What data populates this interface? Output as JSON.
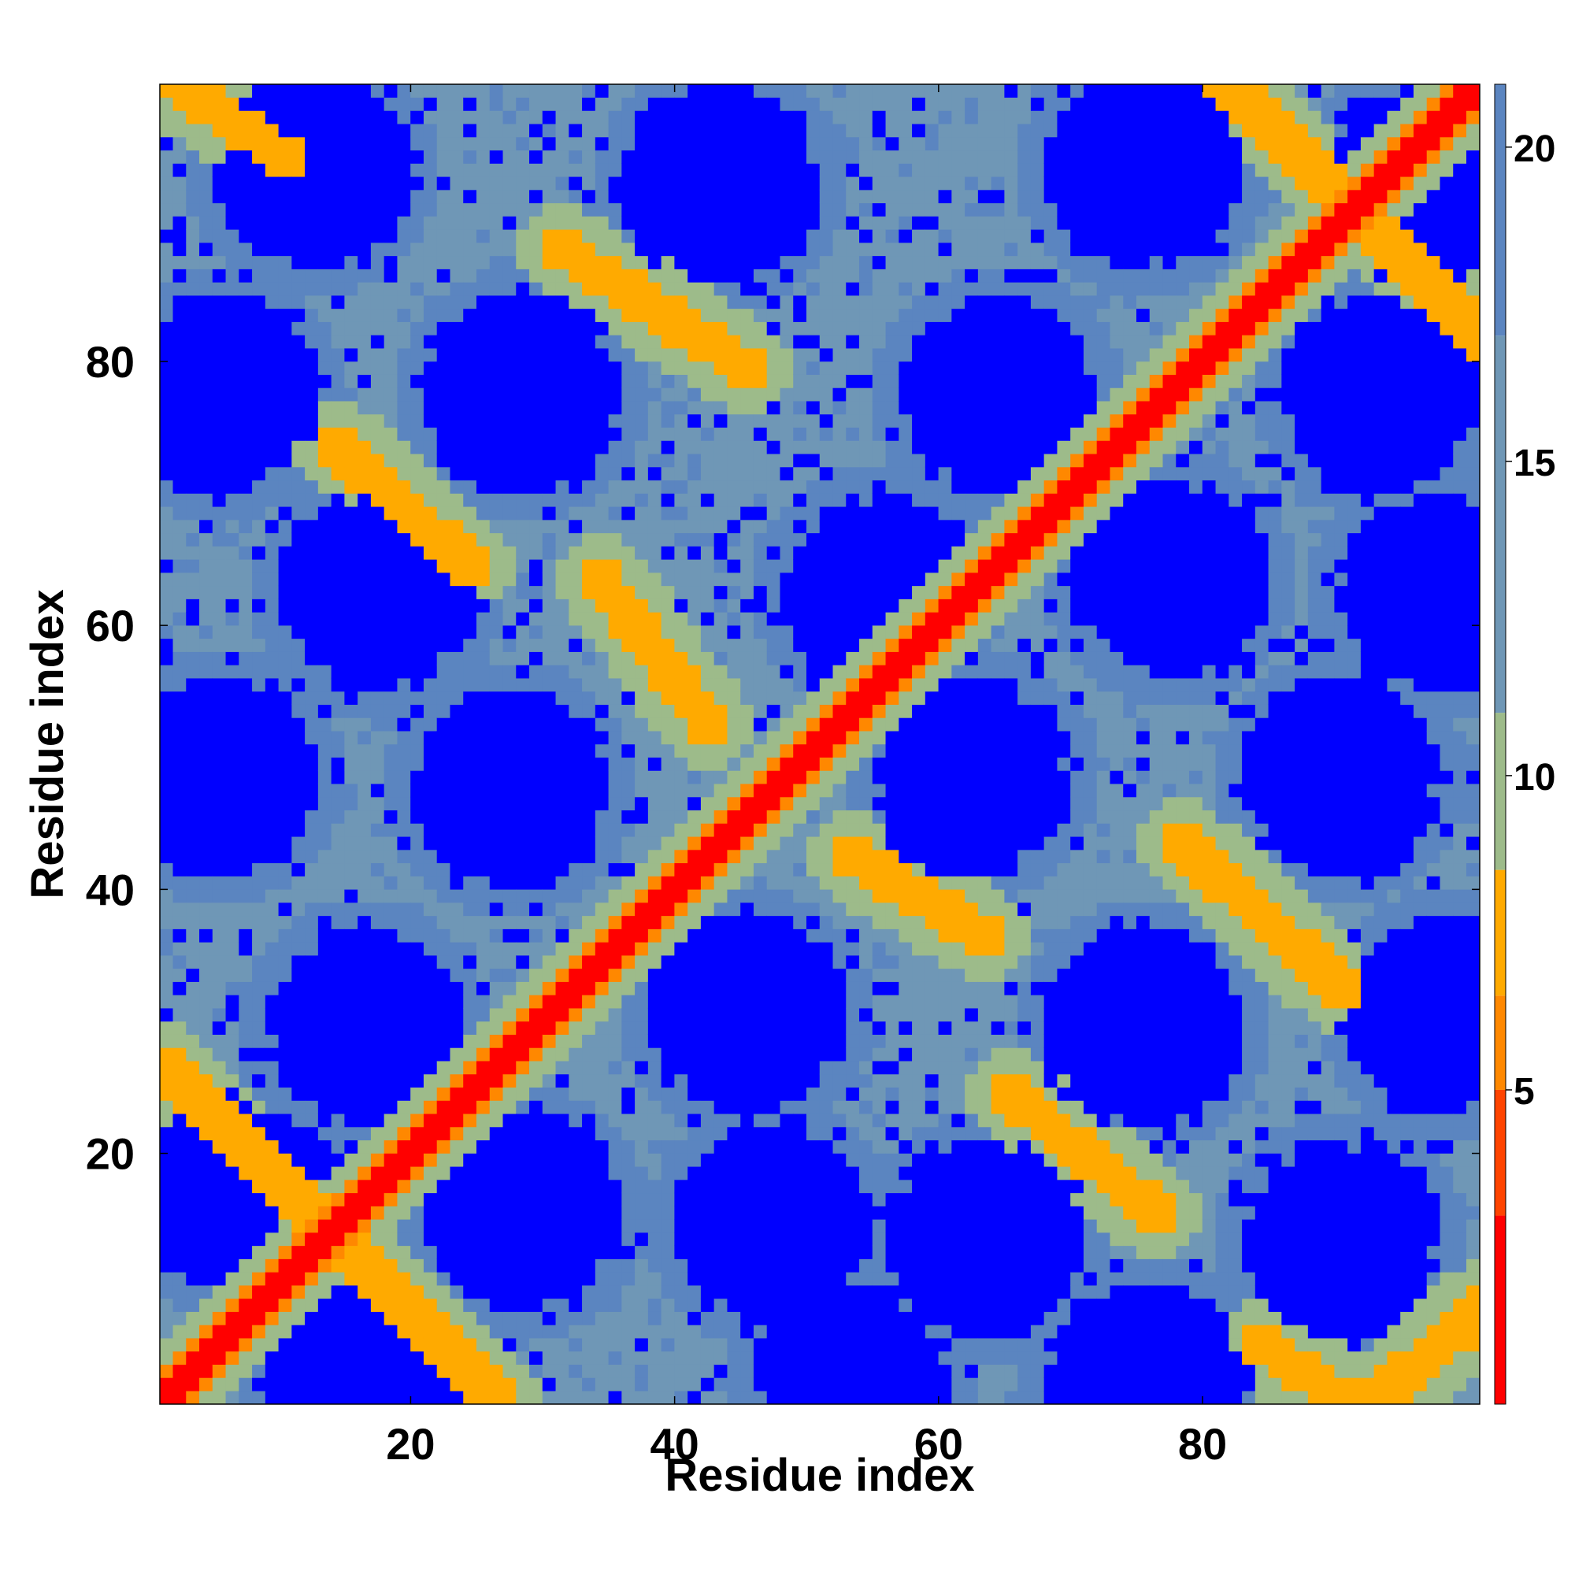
{
  "chart_data": {
    "type": "heatmap",
    "title": "",
    "xlabel": "Residue index",
    "ylabel": "Residue index",
    "x_range": [
      1,
      101
    ],
    "y_range": [
      1,
      101
    ],
    "x_ticks": [
      20,
      40,
      60,
      80
    ],
    "y_ticks": [
      20,
      40,
      60,
      80
    ],
    "colorbar": {
      "label": "",
      "range": [
        0,
        21
      ],
      "ticks": [
        5,
        10,
        15,
        20
      ],
      "colors": [
        "#ff0000",
        "#ff4400",
        "#ff8800",
        "#ffaa00",
        "#9dbb8a",
        "#6f97b6",
        "#5b85c0",
        "#0000ff"
      ],
      "boundaries": [
        0,
        3,
        5,
        6.5,
        8.5,
        11,
        17,
        21,
        21
      ]
    },
    "matrix_model": {
      "description_source": "distance-map read from image",
      "diagonal_value": 1.5,
      "secondary_contact_value": 6.5,
      "blue_blob_value": 21,
      "background_value": 14,
      "anti_diagonal_contact_lines": [
        {
          "from": [
            1,
            26
          ],
          "to": [
            26,
            1
          ]
        },
        {
          "from": [
            14,
            73
          ],
          "to": [
            24,
            64
          ]
        },
        {
          "from": [
            31,
            88
          ],
          "to": [
            45,
            79
          ]
        },
        {
          "from": [
            34,
            63
          ],
          "to": [
            42,
            52
          ]
        },
        {
          "from": [
            53,
            42
          ],
          "to": [
            63,
            36
          ]
        },
        {
          "from": [
            65,
            24
          ],
          "to": [
            76,
            15
          ]
        },
        {
          "from": [
            78,
            43
          ],
          "to": [
            90,
            32
          ]
        },
        {
          "from": [
            81,
            101
          ],
          "to": [
            101,
            81
          ]
        },
        {
          "from": [
            84,
            5
          ],
          "to": [
            90,
            1
          ]
        },
        {
          "from": [
            93,
            1
          ],
          "to": [
            101,
            8
          ]
        },
        {
          "from": [
            1,
            101
          ],
          "to": [
            10,
            95
          ]
        }
      ],
      "blue_blob_centers": [
        [
          12,
          94
        ],
        [
          43,
          93
        ],
        [
          75,
          94
        ],
        [
          96,
          93
        ],
        [
          5,
          77
        ],
        [
          28,
          77
        ],
        [
          64,
          77
        ],
        [
          93,
          77
        ],
        [
          17,
          62
        ],
        [
          55,
          62
        ],
        [
          77,
          63
        ],
        [
          97,
          62
        ],
        [
          5,
          48
        ],
        [
          27,
          47
        ],
        [
          62,
          48
        ],
        [
          90,
          48
        ],
        [
          16,
          29
        ],
        [
          45,
          30
        ],
        [
          75,
          29
        ],
        [
          98,
          30
        ],
        [
          7,
          16
        ],
        [
          28,
          15
        ],
        [
          47,
          14
        ],
        [
          63,
          13
        ],
        [
          90,
          13
        ],
        [
          16,
          2
        ],
        [
          53,
          2
        ],
        [
          75,
          2
        ]
      ]
    }
  }
}
